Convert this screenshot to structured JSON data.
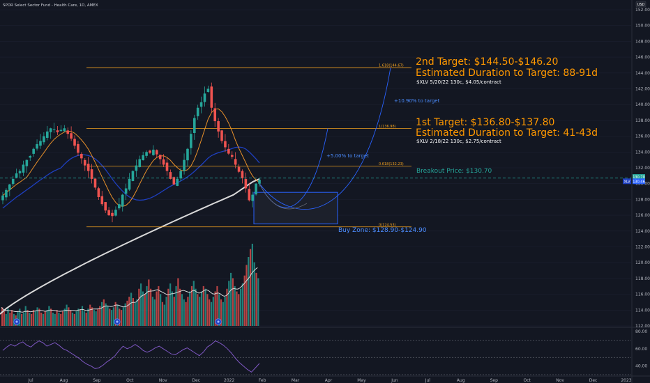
{
  "header": {
    "title": "SPDR Select Sector Fund - Health Care, 1D, AMEX",
    "currency_badge": "USD"
  },
  "colors": {
    "background": "#131722",
    "up": "#26a69a",
    "down": "#ef5350",
    "fib_line": "#f0a020",
    "sma_white": "#d9d9d9",
    "ma_blue": "#1e3fbf",
    "ma_orange": "#e8902a",
    "annotation_orange": "#ff9800",
    "annotation_blue": "#4c8dff",
    "breakout_teal": "#26a69a",
    "rsi_line": "#7e57c2"
  },
  "annotations": {
    "target2_title": "2nd Target: $144.50-$146.20",
    "target2_duration": "Estimated Duration to Target: 88-91d",
    "target2_option": "$XLV 5/20/22 130c, $4.05/contract",
    "target2_pct": "+10.90% to target",
    "target1_title": "1st Target: $136.80-$137.80",
    "target1_duration": "Estimated Duration to Target: 41-43d",
    "target1_option": "$XLV 2/18/22 130c, $2.75/contract",
    "target1_pct": "+5.00% to target",
    "breakout": "Breakout Price: $130.70",
    "buy_zone": "Buy Zone: $128.90-$124.90"
  },
  "fib_levels": [
    {
      "label": "1.618(144.67)",
      "price": 144.67
    },
    {
      "label": "1(136.98)",
      "price": 136.98
    },
    {
      "label": "0.618(132.23)",
      "price": 132.23
    },
    {
      "label": "0(124.53)",
      "price": 124.53
    }
  ],
  "price_tags": [
    {
      "label": "130.70",
      "price": 130.85,
      "color": "#26a69a"
    },
    {
      "label": "130.46",
      "price": 130.3,
      "color": "#1e3fbf"
    },
    {
      "label": "130.46",
      "price": 130.3,
      "color": "#2962ff"
    }
  ],
  "buy_zone_prices": [
    128.9,
    124.9
  ],
  "chart_data": {
    "type": "line",
    "title": "SPDR Select Sector Fund - Health Care, 1D, AMEX",
    "ylim": [
      112,
      152
    ],
    "y_ticks": [
      "112.00",
      "114.00",
      "116.00",
      "118.00",
      "120.00",
      "122.00",
      "124.00",
      "126.00",
      "128.00",
      "130.00",
      "132.00",
      "134.00",
      "136.00",
      "138.00",
      "140.00",
      "142.00",
      "144.00",
      "146.00",
      "148.00",
      "150.00",
      "152.00"
    ],
    "x_ticks": [
      "Jul",
      "Aug",
      "Sep",
      "Oct",
      "Nov",
      "Dec",
      "2022",
      "Feb",
      "Mar",
      "Apr",
      "May",
      "Jun",
      "Jul",
      "Aug",
      "Sep",
      "Oct",
      "Nov",
      "Dec",
      "2023"
    ],
    "series": [
      {
        "values": [
          128.5,
          129.2,
          129.9,
          130.6,
          131.3,
          131.6,
          132.4,
          133.0,
          133.5,
          134.4,
          135.0,
          135.4,
          136.0,
          136.6,
          137.0,
          136.9,
          136.5,
          136.8,
          137.0,
          136.3,
          135.7,
          134.8,
          133.9,
          133.2,
          132.3,
          131.6,
          130.6,
          129.5,
          128.3,
          127.4,
          126.6,
          126.0,
          125.9,
          126.7,
          127.4,
          128.6,
          129.4,
          130.6,
          131.6,
          132.3,
          133.1,
          133.6,
          134.0,
          133.9,
          134.3,
          133.7,
          133.1,
          132.4,
          131.6,
          130.6,
          129.9,
          130.6,
          131.6,
          133.0,
          134.4,
          136.3,
          138.3,
          139.6,
          140.3,
          141.4,
          142.0,
          139.6,
          137.9,
          136.6,
          135.4,
          134.6,
          133.8,
          133.4,
          132.4,
          131.5,
          130.7,
          129.4,
          127.9,
          128.6,
          130.0,
          130.5
        ]
      }
    ],
    "rsi": {
      "ylim": [
        30,
        80
      ],
      "levels": [
        70,
        50,
        30
      ],
      "y_ticks": [
        "40.00",
        "60.00",
        "80.00"
      ],
      "values": [
        58,
        62,
        65,
        63,
        66,
        68,
        64,
        62,
        66,
        69,
        67,
        63,
        65,
        67,
        64,
        60,
        58,
        55,
        52,
        49,
        45,
        42,
        40,
        37,
        38,
        41,
        45,
        48,
        52,
        58,
        63,
        60,
        62,
        65,
        62,
        58,
        56,
        58,
        61,
        63,
        60,
        57,
        54,
        53,
        56,
        59,
        61,
        58,
        55,
        52,
        56,
        62,
        65,
        69,
        67,
        64,
        60,
        55,
        49,
        44,
        40,
        36,
        33,
        38,
        43
      ]
    },
    "volume": {
      "values": [
        14,
        11,
        9,
        13,
        10,
        12,
        9,
        8,
        11,
        13,
        9,
        10,
        15,
        12,
        10,
        9,
        12,
        11,
        14,
        13,
        10,
        9,
        11,
        12,
        15,
        13,
        10,
        9,
        12,
        10,
        9,
        11,
        13,
        16,
        14,
        12,
        10,
        9,
        11,
        13,
        12,
        15,
        11,
        10,
        13,
        16,
        14,
        12,
        11,
        13,
        15,
        18,
        20,
        17,
        15,
        13,
        12,
        14,
        18,
        16,
        13,
        12,
        14,
        17,
        19,
        22,
        25,
        21,
        18,
        20,
        28,
        32,
        26,
        24,
        30,
        35,
        28,
        22,
        20,
        26,
        30,
        24,
        18,
        16,
        22,
        28,
        32,
        26,
        22,
        30,
        36,
        28,
        24,
        20,
        18,
        22,
        26,
        30,
        34,
        28,
        24,
        22,
        26,
        30,
        28,
        24,
        20,
        18,
        22,
        26,
        30,
        24,
        20,
        18,
        22,
        28,
        34,
        40,
        36,
        30,
        26,
        24,
        28,
        32,
        38,
        46,
        52,
        58,
        62,
        48,
        40,
        36
      ]
    }
  }
}
